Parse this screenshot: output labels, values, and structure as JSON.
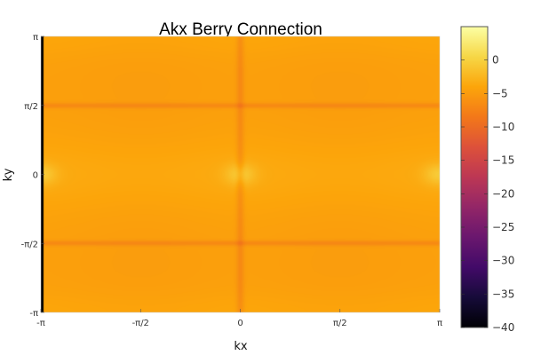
{
  "chart_data": {
    "type": "heatmap",
    "title": "Akx Berry Connection",
    "xlabel": "kx",
    "ylabel": "ky",
    "x_ticks": [
      "-π",
      "-π/2",
      "0",
      "π/2",
      "π"
    ],
    "y_ticks": [
      "π",
      "π/2",
      "0",
      "-π/2",
      "-π"
    ],
    "xlim": [
      -3.14159,
      3.14159
    ],
    "ylim": [
      -3.14159,
      3.14159
    ],
    "colorbar": {
      "colormap": "inferno",
      "range": [
        -40,
        5
      ],
      "ticks": [
        0,
        -5,
        -10,
        -15,
        -20,
        -25,
        -30,
        -35,
        -40
      ]
    },
    "features": {
      "background_value": -4.5,
      "dark_line_value": -8,
      "dark_lines_ky": [
        "π/2",
        "-π/2"
      ],
      "dark_line_kx": "0",
      "bright_points": [
        [
          "-π",
          "0"
        ],
        [
          "0",
          "0"
        ],
        [
          "π",
          "0"
        ]
      ],
      "bright_band_ky": "0",
      "min_value_at_kx": "-π"
    }
  }
}
